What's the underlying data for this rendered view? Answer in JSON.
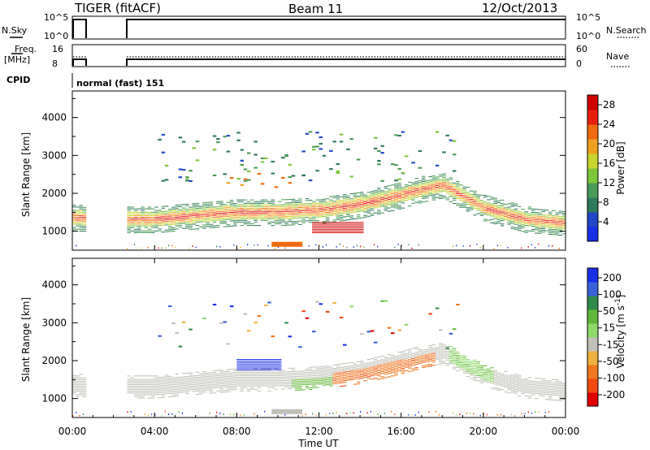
{
  "header": {
    "radar": "TIGER (fitACF)",
    "beam": "Beam 11",
    "date": "12/Oct/2013"
  },
  "panels": {
    "nsky_label": "N.Sky",
    "nsky_ticks": [
      "10^5",
      "10^0"
    ],
    "nsearch_label": "N.Search",
    "nsearch_ticks": [
      "10^5",
      "10^0"
    ],
    "freq_label_1": "Freq.",
    "freq_label_2": "[MHz]",
    "freq_ticks": [
      "16",
      "8"
    ],
    "nave_label": "Nave",
    "nave_ticks": [
      "60",
      "0"
    ],
    "cpid_label": "CPID",
    "cpid_text": "normal (fast) 151"
  },
  "colors": {
    "power": [
      "#1a2fe8",
      "#2246c8",
      "#2e7a5c",
      "#4a9a58",
      "#7dc63a",
      "#c8d430",
      "#f0a020",
      "#f06a10",
      "#e82010",
      "#d00000"
    ],
    "velocity": [
      "#1a2fe8",
      "#3a62d8",
      "#2f8a4a",
      "#62b83a",
      "#8ed86a",
      "#c0c0b8",
      "#f0b040",
      "#f07820",
      "#f04a10",
      "#e00000"
    ]
  },
  "chart_data": [
    {
      "type": "heatmap",
      "title": "",
      "xlabel": "Time UT",
      "ylabel": "Slant Range [km]",
      "x_ticks": [
        "00:00",
        "04:00",
        "08:00",
        "12:00",
        "16:00",
        "20:00",
        "00:00"
      ],
      "y_ticks": [
        "1000",
        "2000",
        "3000",
        "4000"
      ],
      "ylim": [
        500,
        4700
      ],
      "colorbar": {
        "label": "Power [dB]",
        "ticks": [
          "4",
          "8",
          "12",
          "16",
          "20",
          "24",
          "28"
        ],
        "range": [
          0,
          30
        ]
      },
      "bands": [
        {
          "name": "main",
          "x": [
            0,
            2,
            4,
            6,
            8,
            10,
            12,
            14,
            16,
            17,
            18,
            19,
            20,
            22,
            24
          ],
          "center_km": [
            1350,
            1300,
            1300,
            1400,
            1500,
            1500,
            1550,
            1700,
            1950,
            2100,
            2200,
            1900,
            1600,
            1300,
            1200
          ],
          "width_km": [
            400,
            400,
            400,
            400,
            420,
            420,
            420,
            420,
            400,
            380,
            360,
            360,
            380,
            380,
            360
          ]
        },
        {
          "name": "strong patch",
          "x": [
            11.5,
            14
          ],
          "center_km": [
            1100,
            1100
          ],
          "width_km": [
            250,
            250
          ],
          "value_db": 30
        },
        {
          "name": "upper scatter",
          "x": [
            4,
            18
          ],
          "center_km": [
            2900,
            2800
          ],
          "width_km": [
            1000,
            900
          ]
        }
      ],
      "data_gaps_ut": [
        [
          0.5,
          2.5
        ]
      ]
    },
    {
      "type": "heatmap",
      "title": "",
      "xlabel": "Time UT",
      "ylabel": "Slant Range [km]",
      "x_ticks": [
        "00:00",
        "04:00",
        "08:00",
        "12:00",
        "16:00",
        "20:00",
        "00:00"
      ],
      "y_ticks": [
        "1000",
        "2000",
        "3000",
        "4000"
      ],
      "ylim": [
        500,
        4700
      ],
      "colorbar": {
        "label": "Velocity [m s^-1]",
        "ticks": [
          "200",
          "100",
          "50",
          "15",
          "-15",
          "-50",
          "-100",
          "-200"
        ],
        "range": [
          -250,
          250
        ]
      },
      "bands": [
        {
          "name": "ground scatter",
          "x": [
            0,
            24
          ],
          "center_km": [
            1300,
            1200
          ],
          "value_ms": 0
        },
        {
          "name": "negative flow",
          "x": [
            12.5,
            17.5
          ],
          "center_km": [
            1300,
            1500
          ],
          "value_ms": -90
        },
        {
          "name": "positive flow",
          "x": [
            8,
            10
          ],
          "center_km": [
            1900,
            1900
          ],
          "value_ms": 200
        },
        {
          "name": "moderate positive",
          "x": [
            10.5,
            12.5
          ],
          "center_km": [
            1200,
            1200
          ],
          "value_ms": 60
        }
      ],
      "data_gaps_ut": [
        [
          0.5,
          2.5
        ]
      ]
    }
  ]
}
